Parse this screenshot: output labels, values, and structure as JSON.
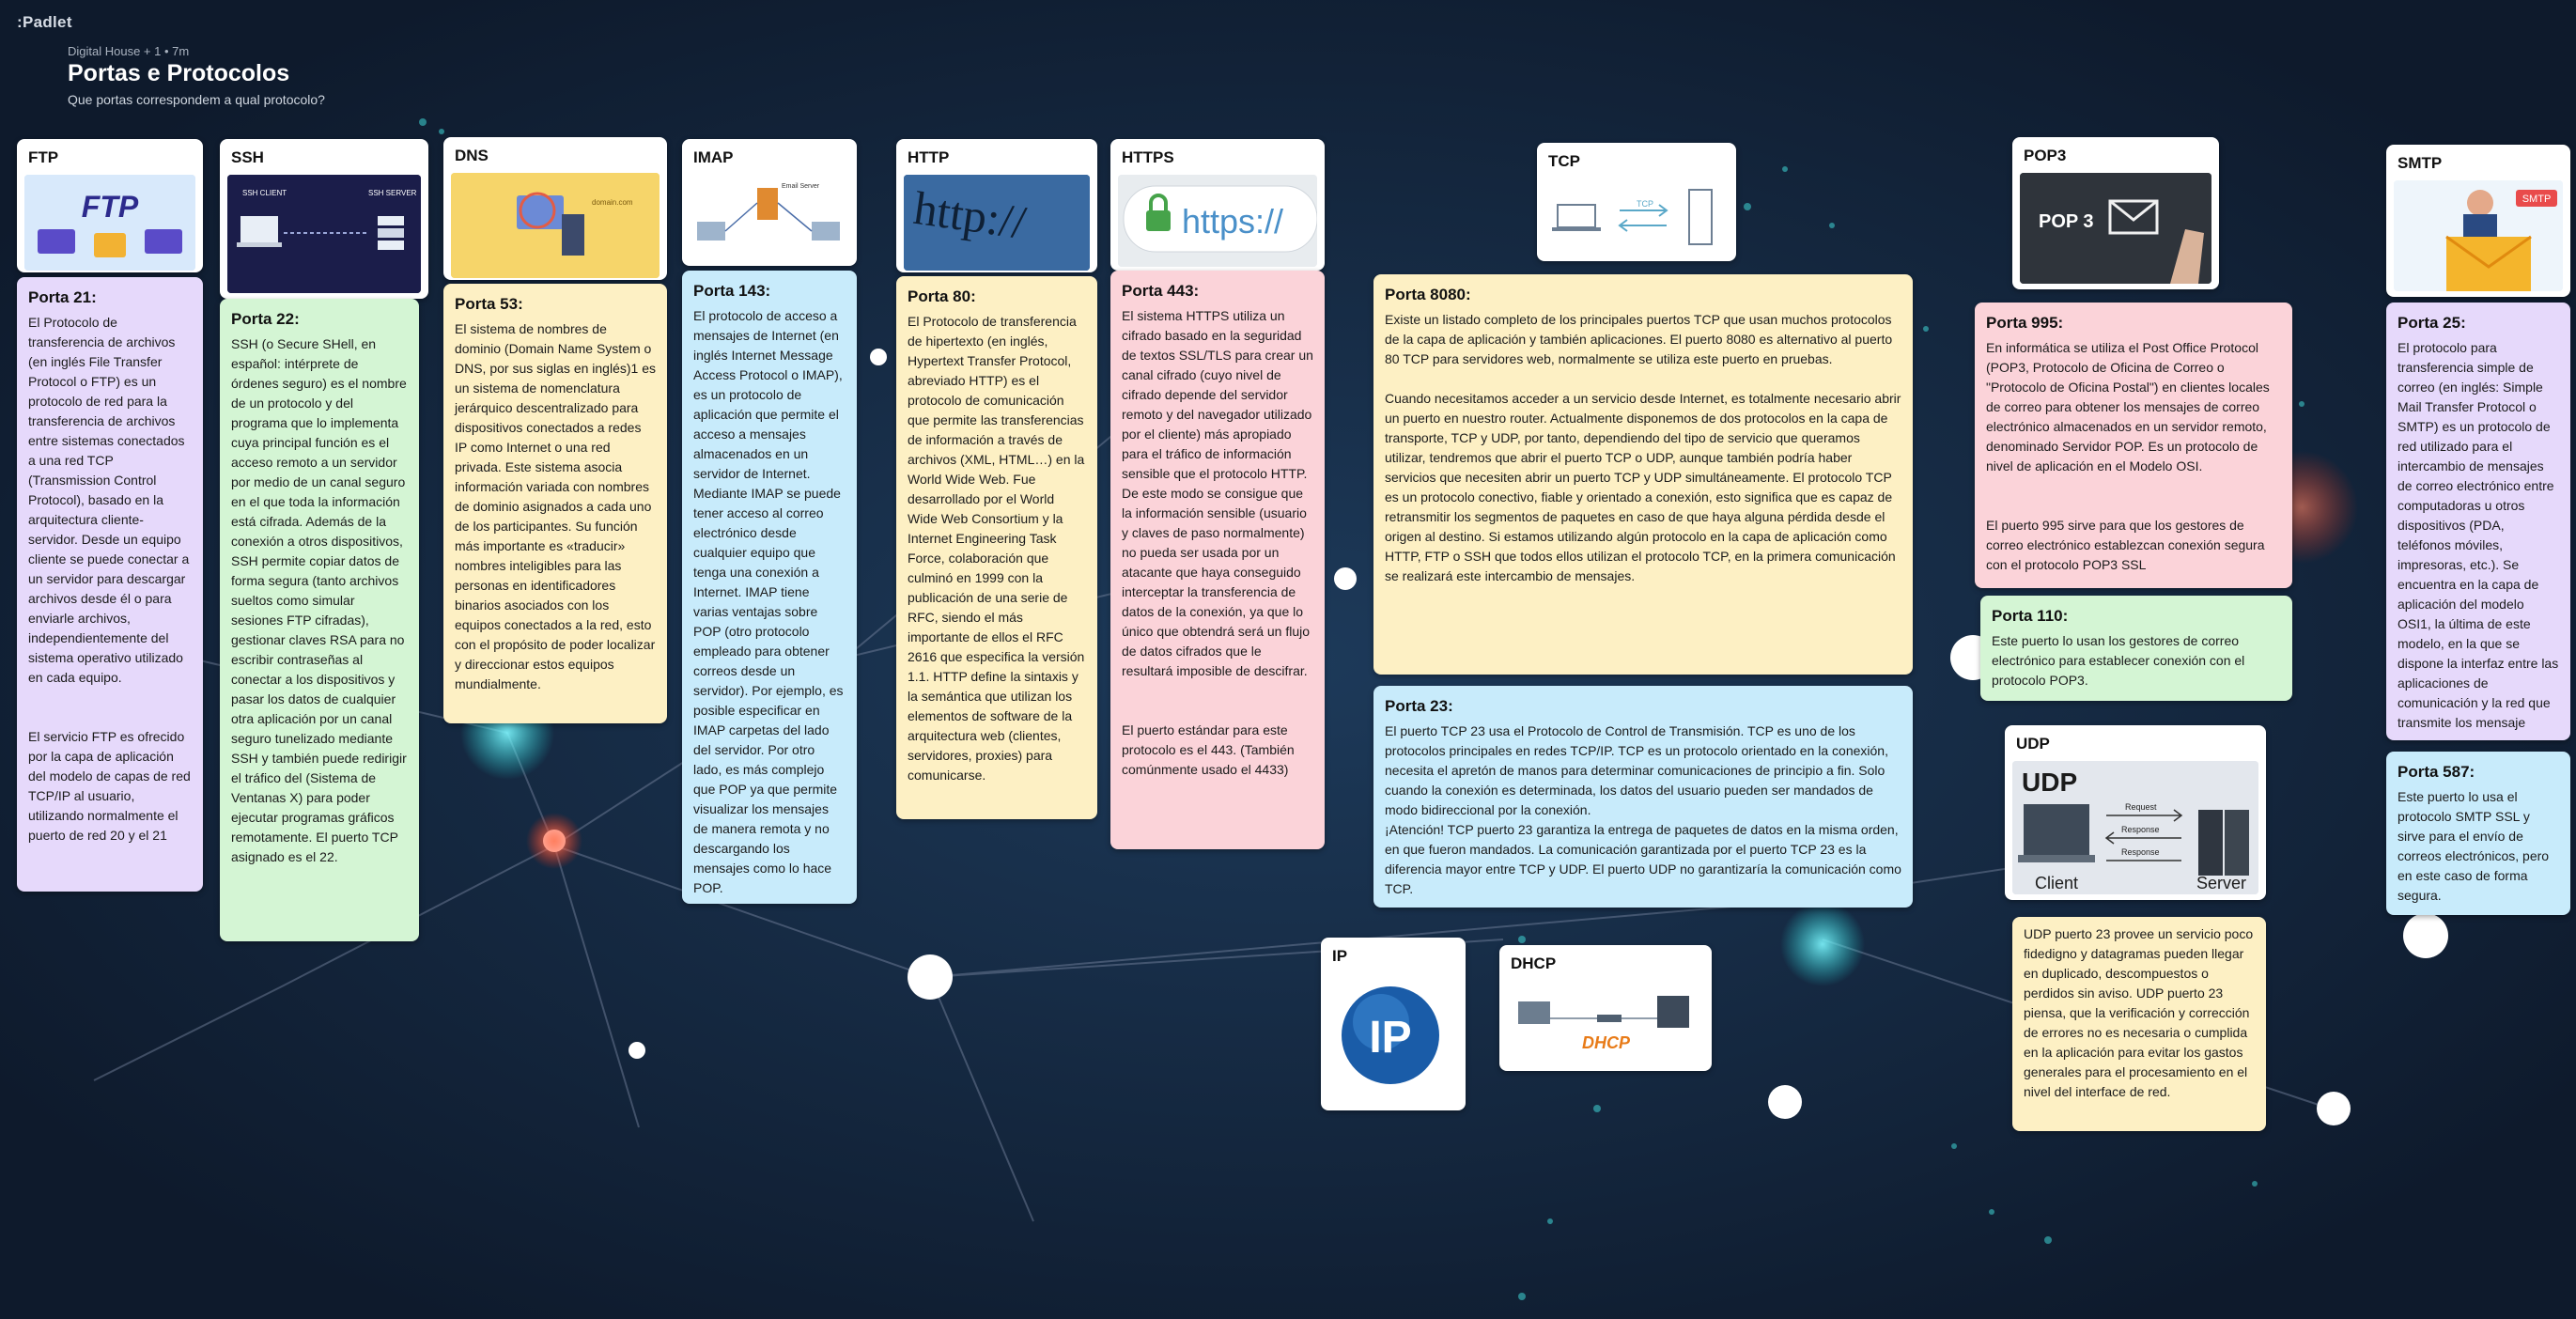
{
  "app": {
    "logo": ":Padlet"
  },
  "header": {
    "breadcrumb": "Digital House + 1 • 7m",
    "title": "Portas e Protocolos",
    "subtitle": "Que portas correspondem a qual protocolo?"
  },
  "cards": {
    "ftp": {
      "title": "FTP",
      "img": "FTP"
    },
    "ftp_21": {
      "title": "Porta 21:",
      "body": "El Protocolo de transferencia de archivos (en inglés File Transfer Protocol o FTP) es un protocolo de red para la transferencia de archivos entre sistemas conectados a una red TCP (Transmission Control Protocol), basado en la arquitectura cliente-servidor. Desde un equipo cliente se puede conectar a un servidor para descargar archivos desde él o para enviarle archivos, independientemente del sistema operativo utilizado en cada equipo.\n\n\nEl servicio FTP es ofrecido por la capa de aplicación del modelo de capas de red TCP/IP al usuario, utilizando normalmente el puerto de red 20 y el 21"
    },
    "ssh": {
      "title": "SSH",
      "img_left": "SSH CLIENT",
      "img_right": "SSH SERVER"
    },
    "ssh_22": {
      "title": "Porta 22:",
      "body": "SSH (o Secure SHell, en español: intérprete de órdenes seguro) es el nombre de un protocolo y del programa que lo implementa cuya principal función es el acceso remoto a un servidor por medio de un canal seguro en el que toda la información está cifrada. Además de la conexión a otros dispositivos, SSH permite copiar datos de forma segura (tanto archivos sueltos como simular sesiones FTP cifradas), gestionar claves RSA para no escribir contraseñas al conectar a los dispositivos y pasar los datos de cualquier otra aplicación por un canal seguro tunelizado mediante SSH y también puede redirigir el tráfico del (Sistema de Ventanas X) para poder ejecutar programas gráficos remotamente. El puerto TCP asignado es el 22."
    },
    "dns": {
      "title": "DNS",
      "img": "domain.com"
    },
    "dns_53": {
      "title": "Porta 53:",
      "body": "El sistema de nombres de dominio (Domain Name System o DNS, por sus siglas en inglés)1 es un sistema de nomenclatura jerárquico descentralizado para dispositivos conectados a redes IP como Internet o una red privada. Este sistema asocia información variada con nombres de dominio asignados a cada uno de los participantes. Su función más importante es «traducir» nombres inteligibles para las personas en identificadores binarios asociados con los equipos conectados a la red, esto con el propósito de poder localizar y direccionar estos equipos mundialmente."
    },
    "imap": {
      "title": "IMAP",
      "img": "Email Server"
    },
    "imap_143": {
      "title": "Porta 143:",
      "body": "El protocolo de acceso a mensajes de Internet (en inglés Internet Message Access Protocol o IMAP), es un protocolo de aplicación que permite el acceso a mensajes almacenados en un servidor de Internet. Mediante IMAP se puede tener acceso al correo electrónico desde cualquier equipo que tenga una conexión a Internet. IMAP tiene varias ventajas sobre POP (otro protocolo empleado para obtener correos desde un servidor). Por ejemplo, es posible especificar en IMAP carpetas del lado del servidor. Por otro lado, es más complejo que POP ya que permite visualizar los mensajes de manera remota y no descargando los mensajes como lo hace POP."
    },
    "http": {
      "title": "HTTP",
      "img": "http://"
    },
    "http_80": {
      "title": "Porta 80:",
      "body": "El Protocolo de transferencia de hipertexto (en inglés, Hypertext Transfer Protocol, abreviado HTTP) es el protocolo de comunicación que permite las transferencias de información a través de archivos (XML, HTML…) en la World Wide Web. Fue desarrollado por el World Wide Web Consortium y la Internet Engineering Task Force, colaboración que culminó en 1999 con la publicación de una serie de RFC, siendo el más importante de ellos el RFC 2616 que especifica la versión 1.1. HTTP define la sintaxis y la semántica que utilizan los elementos de software de la arquitectura web (clientes, servidores, proxies) para comunicarse."
    },
    "https": {
      "title": "HTTPS",
      "img": "https://"
    },
    "https_443": {
      "title": "Porta 443:",
      "body": "El sistema HTTPS utiliza un cifrado basado en la seguridad de textos SSL/TLS para crear un canal cifrado (cuyo nivel de cifrado depende del servidor remoto y del navegador utilizado por el cliente) más apropiado para el tráfico de información sensible que el protocolo HTTP. De este modo se consigue que la información sensible (usuario y claves de paso normalmente) no pueda ser usada por un atacante que haya conseguido interceptar la transferencia de datos de la conexión, ya que lo único que obtendrá será un flujo de datos cifrados que le resultará imposible de descifrar.\n\n\nEl puerto estándar para este protocolo es el 443. (También comúnmente usado el 4433)"
    },
    "tcp": {
      "title": "TCP",
      "img": "TCP"
    },
    "tcp_8080": {
      "title": "Porta 8080:",
      "body": "Existe un listado completo de los principales puertos TCP que usan muchos protocolos de la capa de aplicación y también aplicaciones. El puerto 8080 es alternativo al puerto 80 TCP para servidores web, normalmente se utiliza este puerto en pruebas.\n\nCuando necesitamos acceder a un servicio desde Internet, es totalmente necesario abrir un puerto en nuestro router. Actualmente disponemos de dos protocolos en la capa de transporte, TCP y UDP, por tanto, dependiendo del tipo de servicio que queramos utilizar, tendremos que abrir el puerto TCP o UDP, aunque también podría haber servicios que necesiten abrir un puerto TCP y UDP simultáneamente. El protocolo TCP es un protocolo conectivo, fiable y orientado a conexión, esto significa que es capaz de retransmitir los segmentos de paquetes en caso de que haya alguna pérdida desde el origen al destino. Si estamos utilizando algún protocolo en la capa de aplicación como HTTP, FTP o SSH que todos ellos utilizan el protocolo TCP, en la primera comunicación se realizará este intercambio de mensajes."
    },
    "tcp_23": {
      "title": "Porta 23:",
      "body": "El puerto TCP 23 usa el Protocolo de Control de Transmisión. TCP es uno de los protocolos principales en redes TCP/IP. TCP es un protocolo orientado en la conexión, necesita el apretón de manos para determinar comunicaciones de principio a fin. Solo cuando la conexión es determinada, los datos del usuario pueden ser mandados de modo bidireccional por la conexión.\n¡Atención! TCP puerto 23 garantiza la entrega de paquetes de datos en la misma orden, en que fueron mandados. La comunicación garantizada por el puerto TCP 23 es la diferencia mayor entre TCP y UDP. El puerto UDP no garantizaría la comunicación como TCP."
    },
    "ip": {
      "title": "IP",
      "img": "IP"
    },
    "dhcp": {
      "title": "DHCP",
      "img": "DHCP"
    },
    "pop3": {
      "title": "POP3",
      "img": "POP 3"
    },
    "pop3_995": {
      "title": "Porta 995:",
      "body": "En informática se utiliza el Post Office Protocol (POP3, Protocolo de Oficina de Correo o \"Protocolo de Oficina Postal\") en clientes locales de correo para obtener los mensajes de correo electrónico almacenados en un servidor remoto, denominado Servidor POP. Es un protocolo de nivel de aplicación en el Modelo OSI.\n\n\nEl puerto 995 sirve para que los gestores de correo electrónico establezcan conexión segura con el protocolo POP3 SSL"
    },
    "pop3_110": {
      "title": "Porta 110:",
      "body": "Este puerto lo usan los gestores de correo electrónico para establecer conexión con el protocolo POP3."
    },
    "udp": {
      "title": "UDP",
      "img": "UDP",
      "client": "Client",
      "server": "Server",
      "request": "Request",
      "response1": "Response",
      "response2": "Response"
    },
    "udp_23": {
      "body": "UDP puerto 23 provee un servicio poco fidedigno y datagramas pueden llegar en duplicado, descompuestos o perdidos sin aviso. UDP puerto 23 piensa, que la verificación y corrección de errores no es necesaria o cumplida en la aplicación para evitar los gastos generales para el procesamiento en el nivel del interface de red."
    },
    "smtp": {
      "title": "SMTP",
      "img": "SMTP"
    },
    "smtp_25": {
      "title": "Porta 25:",
      "body": "El protocolo para transferencia simple de correo (en inglés: Simple Mail Transfer Protocol o SMTP) es un protocolo de red utilizado para el intercambio de mensajes de correo electrónico entre computadoras u otros dispositivos (PDA, teléfonos móviles, impresoras, etc.). Se encuentra en la capa de aplicación del modelo OSI1, la última de este modelo, en la que se dispone la interfaz entre las aplicaciones de comunicación y la red que transmite los mensaje"
    },
    "smtp_587": {
      "title": "Porta 587:",
      "body": "Este puerto lo usa el protocolo SMTP SSL y sirve para el envío de correos electrónicos, pero en este caso de forma segura."
    }
  },
  "colors": {
    "background": "#0f1b2e",
    "purple": "#e6d9fb",
    "green": "#d4f5d4",
    "yellow": "#fdf0c4",
    "blue": "#c8ebfb",
    "pink": "#fbd3d9"
  }
}
